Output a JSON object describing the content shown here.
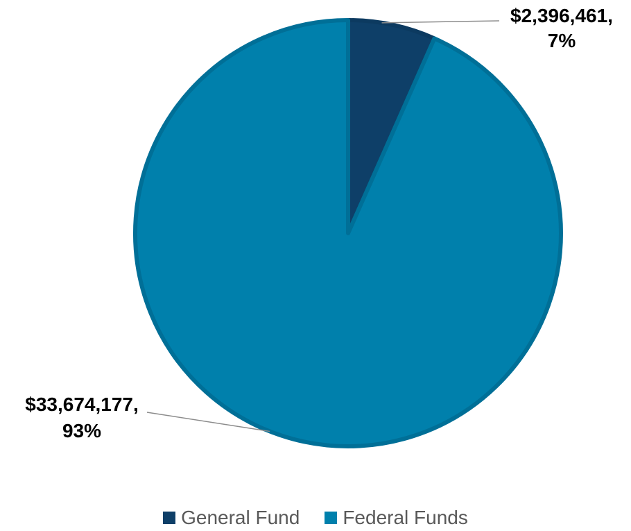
{
  "chart_data": {
    "type": "pie",
    "categories": [
      "General Fund",
      "Federal Funds"
    ],
    "values": [
      2396461,
      33674177
    ],
    "percents": [
      7,
      93
    ],
    "colors": [
      "#0e3f68",
      "#0080ac"
    ],
    "data_labels": [
      {
        "value": "$2,396,461,",
        "percent": "7%"
      },
      {
        "value": "$33,674,177,",
        "percent": "93%"
      }
    ],
    "legend_position": "bottom",
    "legend": [
      "General Fund",
      "Federal Funds"
    ]
  }
}
